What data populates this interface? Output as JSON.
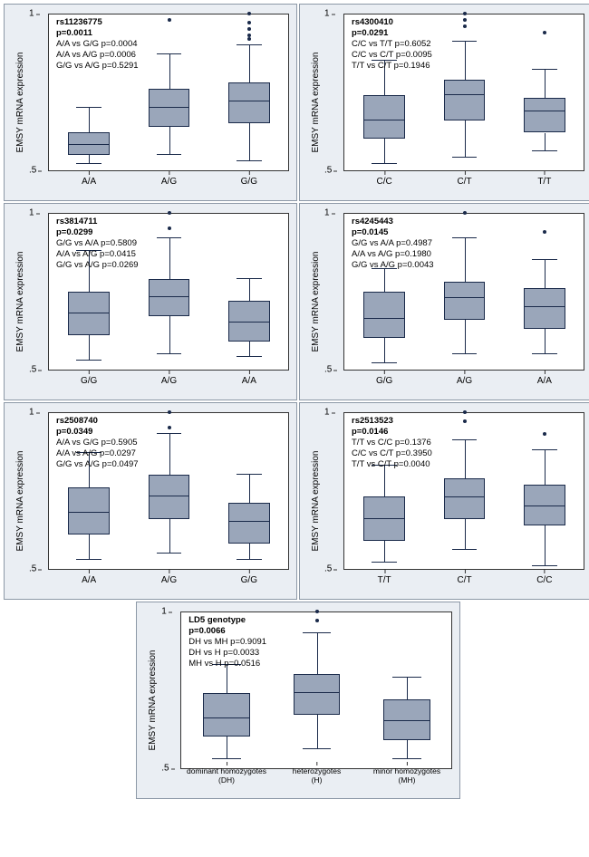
{
  "ylabel": "EMSY mRNA expression",
  "ylim": [
    0.5,
    1.0
  ],
  "yticks": [
    0.5,
    1.0
  ],
  "styling": {
    "box_fill": "#9aa6ba",
    "box_border": "#1a2a4a",
    "panel_bg": "#eaeef3",
    "plot_bg": "#ffffff",
    "axis_color": "#333333",
    "annot_fontsize": 9.5,
    "tick_fontsize": 10,
    "ylabel_fontsize": 10
  },
  "panels": [
    {
      "id": "rs11236775",
      "header": "rs11236775",
      "pvalue": "p=0.0011",
      "lines": [
        "A/A vs G/G p=0.0004",
        "A/A vs A/G p=0.0006",
        "G/G vs A/G p=0.5291"
      ],
      "categories": [
        "A/A",
        "A/G",
        "G/G"
      ],
      "boxes": [
        {
          "q1": 0.55,
          "med": 0.58,
          "q3": 0.62,
          "lo": 0.52,
          "hi": 0.7,
          "out": []
        },
        {
          "q1": 0.64,
          "med": 0.7,
          "q3": 0.76,
          "lo": 0.55,
          "hi": 0.87,
          "out": [
            0.98
          ]
        },
        {
          "q1": 0.65,
          "med": 0.72,
          "q3": 0.78,
          "lo": 0.53,
          "hi": 0.9,
          "out": [
            1.0,
            0.97,
            0.95,
            0.93,
            0.92
          ]
        }
      ]
    },
    {
      "id": "rs4300410",
      "header": "rs4300410",
      "pvalue": "p=0.0291",
      "lines": [
        "C/C vs T/T p=0.6052",
        "C/C vs C/T p=0.0095",
        "T/T vs C/T p=0.1946"
      ],
      "categories": [
        "C/C",
        "C/T",
        "T/T"
      ],
      "boxes": [
        {
          "q1": 0.6,
          "med": 0.66,
          "q3": 0.74,
          "lo": 0.52,
          "hi": 0.85,
          "out": []
        },
        {
          "q1": 0.66,
          "med": 0.74,
          "q3": 0.79,
          "lo": 0.54,
          "hi": 0.91,
          "out": [
            1.0,
            0.98,
            0.96
          ]
        },
        {
          "q1": 0.62,
          "med": 0.69,
          "q3": 0.73,
          "lo": 0.56,
          "hi": 0.82,
          "out": [
            0.94
          ]
        }
      ]
    },
    {
      "id": "rs3814711",
      "header": "rs3814711",
      "pvalue": "p=0.0299",
      "lines": [
        "G/G vs A/A p=0.5809",
        "A/A vs A/G p=0.0415",
        "G/G vs A/G p=0.0269"
      ],
      "categories": [
        "G/G",
        "A/G",
        "A/A"
      ],
      "boxes": [
        {
          "q1": 0.61,
          "med": 0.68,
          "q3": 0.75,
          "lo": 0.53,
          "hi": 0.88,
          "out": []
        },
        {
          "q1": 0.67,
          "med": 0.73,
          "q3": 0.79,
          "lo": 0.55,
          "hi": 0.92,
          "out": [
            1.0,
            0.95
          ]
        },
        {
          "q1": 0.59,
          "med": 0.65,
          "q3": 0.72,
          "lo": 0.54,
          "hi": 0.79,
          "out": []
        }
      ]
    },
    {
      "id": "rs4245443",
      "header": "rs4245443",
      "pvalue": "p=0.0145",
      "lines": [
        "G/G vs A/A p=0.4987",
        "A/A vs A/G p=0.1980",
        "G/G vs A/G p=0.0043"
      ],
      "categories": [
        "G/G",
        "A/G",
        "A/A"
      ],
      "boxes": [
        {
          "q1": 0.6,
          "med": 0.66,
          "q3": 0.75,
          "lo": 0.52,
          "hi": 0.82,
          "out": []
        },
        {
          "q1": 0.66,
          "med": 0.73,
          "q3": 0.78,
          "lo": 0.55,
          "hi": 0.92,
          "out": [
            1.0
          ]
        },
        {
          "q1": 0.63,
          "med": 0.7,
          "q3": 0.76,
          "lo": 0.55,
          "hi": 0.85,
          "out": [
            0.94
          ]
        }
      ]
    },
    {
      "id": "rs2508740",
      "header": "rs2508740",
      "pvalue": "p=0.0349",
      "lines": [
        "A/A vs G/G p=0.5905",
        "A/A vs A/G p=0.0297",
        "G/G vs A/G p=0.0497"
      ],
      "categories": [
        "A/A",
        "A/G",
        "G/G"
      ],
      "boxes": [
        {
          "q1": 0.61,
          "med": 0.68,
          "q3": 0.76,
          "lo": 0.53,
          "hi": 0.87,
          "out": []
        },
        {
          "q1": 0.66,
          "med": 0.73,
          "q3": 0.8,
          "lo": 0.55,
          "hi": 0.93,
          "out": [
            1.0,
            0.95
          ]
        },
        {
          "q1": 0.58,
          "med": 0.65,
          "q3": 0.71,
          "lo": 0.53,
          "hi": 0.8,
          "out": []
        }
      ]
    },
    {
      "id": "rs2513523",
      "header": "rs2513523",
      "pvalue": "p=0.0146",
      "lines": [
        "T/T vs C/C p=0.1376",
        "C/C vs C/T p=0.3950",
        "T/T vs C/T p=0.0040"
      ],
      "categories": [
        "T/T",
        "C/T",
        "C/C"
      ],
      "boxes": [
        {
          "q1": 0.59,
          "med": 0.66,
          "q3": 0.73,
          "lo": 0.52,
          "hi": 0.83,
          "out": []
        },
        {
          "q1": 0.66,
          "med": 0.73,
          "q3": 0.79,
          "lo": 0.56,
          "hi": 0.91,
          "out": [
            1.0,
            0.97
          ]
        },
        {
          "q1": 0.64,
          "med": 0.7,
          "q3": 0.77,
          "lo": 0.51,
          "hi": 0.88,
          "out": [
            0.93
          ]
        }
      ]
    },
    {
      "id": "LD5",
      "header": "LD5 genotype",
      "pvalue": "p=0.0066",
      "lines": [
        "DH vs MH p=0.9091",
        "DH vs H p=0.0033",
        "MH vs H p=0.0516"
      ],
      "categories": [
        "dominant homozygotes\n(DH)",
        "heterozygotes\n(H)",
        "minor homozygotes\n(MH)"
      ],
      "smallTicks": true,
      "boxes": [
        {
          "q1": 0.6,
          "med": 0.66,
          "q3": 0.74,
          "lo": 0.53,
          "hi": 0.83,
          "out": []
        },
        {
          "q1": 0.67,
          "med": 0.74,
          "q3": 0.8,
          "lo": 0.56,
          "hi": 0.93,
          "out": [
            1.0,
            0.97
          ]
        },
        {
          "q1": 0.59,
          "med": 0.65,
          "q3": 0.72,
          "lo": 0.53,
          "hi": 0.79,
          "out": []
        }
      ]
    }
  ]
}
